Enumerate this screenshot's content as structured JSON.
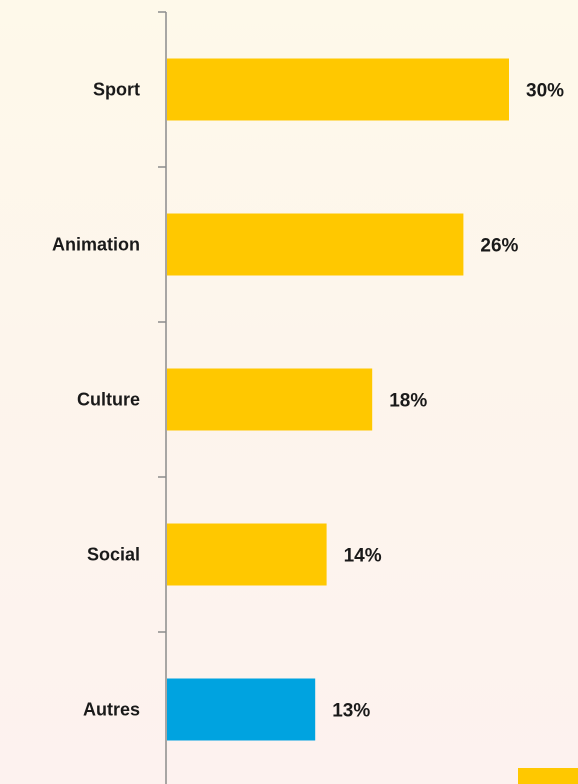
{
  "chart_data": {
    "type": "bar",
    "orientation": "horizontal",
    "categories": [
      "Sport",
      "Animation",
      "Culture",
      "Social",
      "Autres"
    ],
    "values": [
      30,
      26,
      18,
      14,
      13
    ],
    "value_labels": [
      "30%",
      "26%",
      "18%",
      "14%",
      "13%"
    ],
    "unit": "%",
    "colors": [
      "#ffc800",
      "#ffc800",
      "#ffc800",
      "#ffc800",
      "#00a3e0"
    ],
    "axis_color": "#8c8c8c",
    "xlim": [
      0,
      35
    ],
    "grid": false,
    "legend": "none"
  }
}
